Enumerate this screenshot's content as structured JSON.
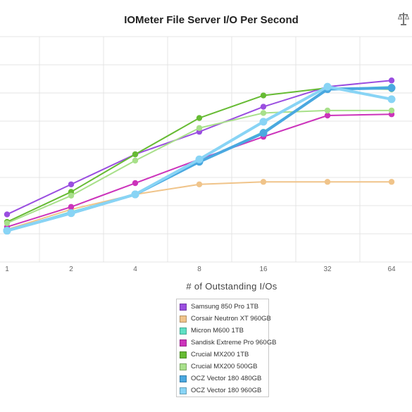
{
  "chart_data": {
    "type": "line",
    "title": "IOMeter File Server I/O Per Second",
    "xlabel": "# of Outstanding I/Os",
    "ylabel": "",
    "categories": [
      "1",
      "2",
      "4",
      "8",
      "16",
      "32",
      "64"
    ],
    "ylim": [
      0,
      9
    ],
    "grid": true,
    "legend_position": "bottom",
    "series": [
      {
        "name": "Samsung 850 Pro 1TB",
        "color": "#9a4ee0",
        "values": [
          1.9,
          3.1,
          4.3,
          5.2,
          6.2,
          7.0,
          7.25
        ]
      },
      {
        "name": "Corsair Neutron XT 960GB",
        "color": "#f0c48a",
        "values": [
          1.3,
          2.1,
          2.7,
          3.1,
          3.2,
          3.2,
          3.2
        ]
      },
      {
        "name": "Micron M600 1TB",
        "color": "#5fe0c4",
        "values": [
          1.25,
          2.0,
          2.7,
          4.0,
          5.2,
          6.9,
          7.0
        ]
      },
      {
        "name": "Sandisk Extreme Pro 960GB",
        "color": "#cc33bb",
        "values": [
          1.4,
          2.2,
          3.15,
          4.1,
          5.0,
          5.85,
          5.9
        ]
      },
      {
        "name": "Crucial MX200 1TB",
        "color": "#66bb33",
        "values": [
          1.6,
          2.8,
          4.3,
          5.75,
          6.65,
          6.95,
          6.9
        ]
      },
      {
        "name": "Crucial MX200 500GB",
        "color": "#a8e08a",
        "values": [
          1.55,
          2.65,
          4.05,
          5.35,
          5.95,
          6.05,
          6.05
        ]
      },
      {
        "name": "OCZ Vector 180 480GB",
        "color": "#4aa8e0",
        "values": [
          1.25,
          1.95,
          2.7,
          4.0,
          5.15,
          6.9,
          6.95
        ]
      },
      {
        "name": "OCZ Vector 180 960GB",
        "color": "#88d4f5",
        "values": [
          1.25,
          1.95,
          2.7,
          4.1,
          5.6,
          7.0,
          6.5
        ]
      }
    ]
  },
  "logo": {
    "name": "scale-logo"
  }
}
